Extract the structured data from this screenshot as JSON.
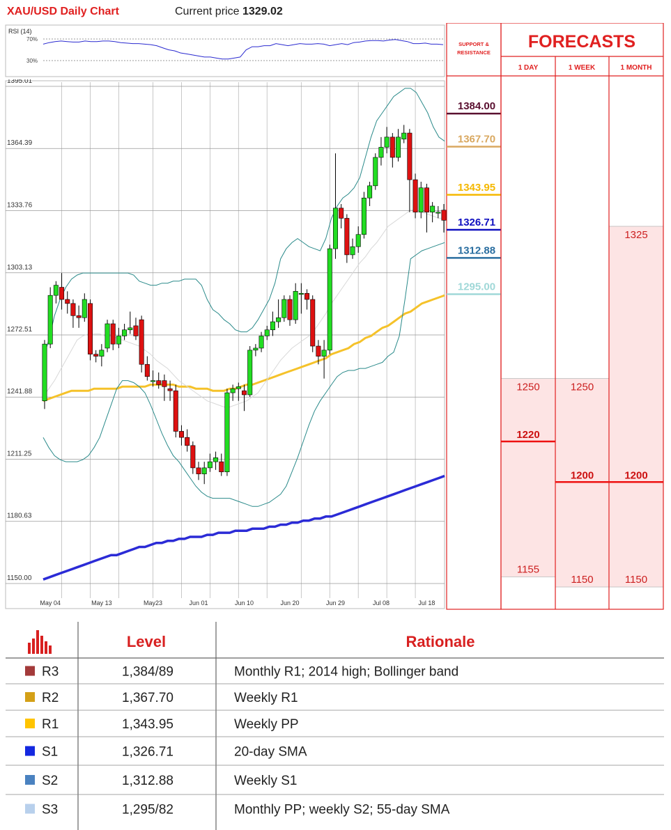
{
  "header": {
    "title": "XAU/USD Daily Chart",
    "price_label": "Current price",
    "price_value": "1329.02"
  },
  "rsi": {
    "label": "RSI (14)",
    "level_high": "70%",
    "level_low": "30%"
  },
  "colors": {
    "up": "#22dd22",
    "down": "#dd1111",
    "sma55": "#f5c22a",
    "sma200": "#2b2bd6",
    "bollinger": "#2a8a8a",
    "sma20": "#d8d8d8",
    "forecast_fill": "#fde4e4",
    "forecast_line": "#ee1111",
    "title_red": "#e02020"
  },
  "chart_data": [
    {
      "type": "line",
      "title": "RSI (14)",
      "ylim": [
        0,
        100
      ],
      "reference_lines": [
        70,
        30
      ],
      "values": [
        63,
        66,
        68,
        69,
        68,
        67,
        67,
        69,
        68,
        68,
        69,
        69,
        68,
        66,
        65,
        64,
        64,
        63,
        62,
        60,
        56,
        52,
        50,
        46,
        44,
        42,
        40,
        38,
        38,
        36,
        34,
        34,
        36,
        38,
        52,
        58,
        58,
        60,
        60,
        64,
        62,
        60,
        62,
        64,
        63,
        63,
        64,
        63,
        60,
        62,
        64,
        62,
        66,
        67,
        69,
        70,
        70,
        69,
        71,
        72,
        70,
        68,
        64,
        64,
        65,
        63,
        63,
        62
      ]
    },
    {
      "type": "candlestick",
      "title": "XAU/USD Daily Chart",
      "ylim": [
        1145,
        1400
      ],
      "y_ticks": [
        1150.0,
        1180.63,
        1211.25,
        1241.88,
        1272.51,
        1303.13,
        1333.76,
        1364.39,
        1395.01
      ],
      "x_tick_labels": [
        "May 04",
        "May 13",
        "May23",
        "Jun 01",
        "Jun 10",
        "Jun 20",
        "Jun 29",
        "Jul 08",
        "Jul 18"
      ],
      "candles": [
        [
          1240,
          1268,
          1236,
          1270
        ],
        [
          1268,
          1292,
          1266,
          1296
        ],
        [
          1292,
          1297,
          1288,
          1299
        ],
        [
          1296,
          1290,
          1285,
          1303
        ],
        [
          1290,
          1288,
          1283,
          1294
        ],
        [
          1288,
          1282,
          1276,
          1290
        ],
        [
          1282,
          1281,
          1276,
          1287
        ],
        [
          1281,
          1290,
          1279,
          1293
        ],
        [
          1288,
          1263,
          1260,
          1290
        ],
        [
          1263,
          1262,
          1259,
          1265
        ],
        [
          1262,
          1265,
          1257,
          1268
        ],
        [
          1266,
          1278,
          1264,
          1280
        ],
        [
          1278,
          1268,
          1265,
          1280
        ],
        [
          1268,
          1272,
          1266,
          1276
        ],
        [
          1272,
          1275,
          1270,
          1278
        ],
        [
          1275,
          1276,
          1273,
          1284
        ],
        [
          1277,
          1272,
          1270,
          1281
        ],
        [
          1280,
          1258,
          1254,
          1282
        ],
        [
          1258,
          1252,
          1250,
          1262
        ],
        [
          1250,
          1250,
          1247,
          1255
        ],
        [
          1250,
          1248,
          1246,
          1254
        ],
        [
          1250,
          1247,
          1240,
          1253
        ],
        [
          1246,
          1245,
          1240,
          1250
        ],
        [
          1245,
          1225,
          1222,
          1248
        ],
        [
          1225,
          1222,
          1218,
          1228
        ],
        [
          1222,
          1218,
          1215,
          1226
        ],
        [
          1218,
          1207,
          1204,
          1220
        ],
        [
          1207,
          1204,
          1201,
          1210
        ],
        [
          1204,
          1207,
          1199,
          1210
        ],
        [
          1207,
          1210,
          1205,
          1214
        ],
        [
          1210,
          1212,
          1206,
          1215
        ],
        [
          1210,
          1205,
          1203,
          1214
        ],
        [
          1205,
          1244,
          1203,
          1246
        ],
        [
          1244,
          1246,
          1240,
          1248
        ],
        [
          1246,
          1247,
          1240,
          1249
        ],
        [
          1245,
          1243,
          1235,
          1248
        ],
        [
          1243,
          1265,
          1242,
          1267
        ],
        [
          1265,
          1266,
          1262,
          1268
        ],
        [
          1266,
          1272,
          1264,
          1274
        ],
        [
          1272,
          1275,
          1270,
          1277
        ],
        [
          1275,
          1279,
          1272,
          1284
        ],
        [
          1279,
          1281,
          1276,
          1290
        ],
        [
          1281,
          1290,
          1279,
          1292
        ],
        [
          1290,
          1280,
          1277,
          1292
        ],
        [
          1280,
          1294,
          1278,
          1298
        ],
        [
          1293,
          1293,
          1283,
          1298
        ],
        [
          1293,
          1290,
          1285,
          1295
        ],
        [
          1290,
          1267,
          1264,
          1292
        ],
        [
          1267,
          1262,
          1258,
          1270
        ],
        [
          1262,
          1265,
          1251,
          1270
        ],
        [
          1265,
          1315,
          1263,
          1317
        ],
        [
          1315,
          1335,
          1310,
          1362
        ],
        [
          1335,
          1330,
          1325,
          1337
        ],
        [
          1330,
          1312,
          1308,
          1332
        ],
        [
          1312,
          1316,
          1310,
          1320
        ],
        [
          1316,
          1322,
          1313,
          1326
        ],
        [
          1322,
          1340,
          1320,
          1343
        ],
        [
          1340,
          1346,
          1336,
          1348
        ],
        [
          1346,
          1360,
          1344,
          1362
        ],
        [
          1360,
          1365,
          1356,
          1370
        ],
        [
          1365,
          1370,
          1362,
          1375
        ],
        [
          1370,
          1360,
          1355,
          1372
        ],
        [
          1360,
          1370,
          1358,
          1374
        ],
        [
          1369,
          1372,
          1367,
          1376
        ],
        [
          1372,
          1349,
          1333,
          1374
        ],
        [
          1349,
          1333,
          1330,
          1352
        ],
        [
          1333,
          1345,
          1330,
          1348
        ],
        [
          1345,
          1333,
          1323,
          1347
        ],
        [
          1333,
          1336,
          1328,
          1338
        ],
        [
          1333,
          1333,
          1330,
          1336
        ],
        [
          1334,
          1329,
          1323,
          1337
        ]
      ],
      "series": [
        {
          "name": "55-day SMA",
          "values": [
            1240,
            1241,
            1242,
            1243,
            1244,
            1245,
            1245,
            1245,
            1245,
            1246,
            1246,
            1246,
            1246,
            1246,
            1247,
            1247,
            1247,
            1247,
            1247,
            1248,
            1248,
            1248,
            1248,
            1248,
            1247,
            1247,
            1247,
            1246,
            1246,
            1246,
            1245,
            1245,
            1245,
            1246,
            1246,
            1247,
            1248,
            1248,
            1249,
            1250,
            1251,
            1252,
            1253,
            1254,
            1255,
            1256,
            1257,
            1258,
            1259,
            1260,
            1261,
            1263,
            1264,
            1265,
            1266,
            1268,
            1269,
            1271,
            1272,
            1274,
            1276,
            1277,
            1279,
            1281,
            1283,
            1284,
            1286,
            1288,
            1289,
            1290,
            1291,
            1292
          ]
        },
        {
          "name": "200-day SMA",
          "values": [
            1152,
            1153,
            1154,
            1155,
            1156,
            1157,
            1158,
            1159,
            1160,
            1161,
            1162,
            1163,
            1164,
            1164,
            1165,
            1166,
            1167,
            1168,
            1168,
            1169,
            1170,
            1170,
            1171,
            1171,
            1172,
            1172,
            1173,
            1173,
            1173,
            1174,
            1174,
            1175,
            1175,
            1175,
            1176,
            1176,
            1176,
            1177,
            1177,
            1177,
            1178,
            1178,
            1179,
            1179,
            1180,
            1180,
            1181,
            1181,
            1182,
            1182,
            1183,
            1183,
            1184,
            1185,
            1186,
            1187,
            1188,
            1189,
            1190,
            1191,
            1192,
            1193,
            1194,
            1195,
            1196,
            1197,
            1198,
            1199,
            1200,
            1201,
            1202,
            1203
          ]
        },
        {
          "name": "Bollinger upper",
          "values": [
            1261,
            1270,
            1282,
            1290,
            1296,
            1300,
            1302,
            1303,
            1303,
            1303,
            1303,
            1303,
            1303,
            1303,
            1303,
            1303,
            1302,
            1299,
            1298,
            1297,
            1297,
            1298,
            1298,
            1299,
            1299,
            1300,
            1300,
            1300,
            1297,
            1290,
            1285,
            1283,
            1280,
            1278,
            1275,
            1274,
            1274,
            1276,
            1280,
            1285,
            1290,
            1298,
            1310,
            1315,
            1318,
            1320,
            1318,
            1316,
            1315,
            1314,
            1320,
            1330,
            1336,
            1340,
            1342,
            1345,
            1350,
            1360,
            1370,
            1378,
            1382,
            1386,
            1390,
            1392,
            1394,
            1394,
            1392,
            1387,
            1382,
            1375,
            1370,
            1368
          ]
        },
        {
          "name": "Bollinger lower",
          "values": [
            1222,
            1217,
            1213,
            1211,
            1210,
            1210,
            1210,
            1211,
            1213,
            1217,
            1222,
            1230,
            1238,
            1246,
            1250,
            1250,
            1249,
            1247,
            1244,
            1238,
            1231,
            1224,
            1218,
            1213,
            1210,
            1206,
            1202,
            1198,
            1195,
            1193,
            1192,
            1192,
            1192,
            1192,
            1191,
            1190,
            1189,
            1188,
            1188,
            1189,
            1190,
            1192,
            1194,
            1198,
            1205,
            1212,
            1220,
            1228,
            1235,
            1240,
            1244,
            1248,
            1252,
            1254,
            1255,
            1255,
            1256,
            1256,
            1257,
            1258,
            1259,
            1262,
            1264,
            1272,
            1290,
            1310,
            1312,
            1314,
            1315,
            1316,
            1317,
            1318
          ]
        },
        {
          "name": "20-day SMA",
          "values": [
            1242,
            1246,
            1250,
            1255,
            1260,
            1265,
            1270,
            1272,
            1273,
            1273,
            1273,
            1272,
            1272,
            1271,
            1270,
            1269,
            1268,
            1267,
            1265,
            1263,
            1260,
            1258,
            1256,
            1253,
            1250,
            1248,
            1246,
            1244,
            1242,
            1240,
            1239,
            1238,
            1237,
            1237,
            1238,
            1239,
            1240,
            1242,
            1244,
            1248,
            1252,
            1256,
            1260,
            1263,
            1266,
            1268,
            1270,
            1272,
            1275,
            1279,
            1283,
            1288,
            1292,
            1296,
            1300,
            1304,
            1308,
            1311,
            1315,
            1318,
            1322,
            1326,
            1328,
            1330,
            1332,
            1334,
            1334,
            1333,
            1332,
            1331,
            1330,
            1330
          ]
        }
      ]
    }
  ],
  "sr_panel": {
    "heading": "SUPPORT & RESISTANCE",
    "levels": [
      {
        "value": "1384.00",
        "color": "#5a1030"
      },
      {
        "value": "1367.70",
        "color": "#d9a860"
      },
      {
        "value": "1343.95",
        "color": "#f5b800"
      },
      {
        "value": "1326.71",
        "color": "#1010c0"
      },
      {
        "value": "1312.88",
        "color": "#2a6ea0"
      },
      {
        "value": "1295.00",
        "color": "#a0d8d8"
      }
    ]
  },
  "forecasts": {
    "title": "FORECASTS",
    "columns": [
      "1 DAY",
      "1 WEEK",
      "1 MONTH"
    ],
    "day": {
      "high": "1250",
      "mid": "1220",
      "low": "1155"
    },
    "week": {
      "high": "1250",
      "mid": "1200",
      "low": "1150"
    },
    "month": {
      "high": "1325",
      "mid": "1200",
      "low": "1150"
    }
  },
  "table": {
    "header_icon": "bar-chart-icon",
    "headers": [
      "Level",
      "Rationale"
    ],
    "rows": [
      {
        "tag": "R3",
        "color": "#a33a3a",
        "level": "1,384/89",
        "rationale": "Monthly R1; 2014 high; Bollinger band"
      },
      {
        "tag": "R2",
        "color": "#d4a017",
        "level": "1,367.70",
        "rationale": "Weekly R1"
      },
      {
        "tag": "R1",
        "color": "#ffc400",
        "level": "1,343.95",
        "rationale": "Weekly PP"
      },
      {
        "tag": "S1",
        "color": "#1428e0",
        "level": "1,326.71",
        "rationale": "20-day SMA"
      },
      {
        "tag": "S2",
        "color": "#4a82c0",
        "level": "1,312.88",
        "rationale": "Weekly S1"
      },
      {
        "tag": "S3",
        "color": "#b8d0ec",
        "level": "1,295/82",
        "rationale": "Monthly PP; weekly S2; 55-day SMA"
      }
    ]
  }
}
